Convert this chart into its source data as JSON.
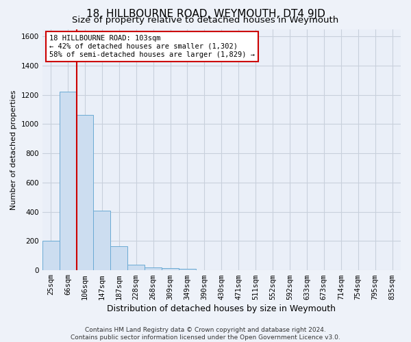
{
  "title": "18, HILLBOURNE ROAD, WEYMOUTH, DT4 9JD",
  "subtitle": "Size of property relative to detached houses in Weymouth",
  "xlabel": "Distribution of detached houses by size in Weymouth",
  "ylabel": "Number of detached properties",
  "categories": [
    "25sqm",
    "66sqm",
    "106sqm",
    "147sqm",
    "187sqm",
    "228sqm",
    "268sqm",
    "309sqm",
    "349sqm",
    "390sqm",
    "430sqm",
    "471sqm",
    "511sqm",
    "552sqm",
    "592sqm",
    "633sqm",
    "673sqm",
    "714sqm",
    "754sqm",
    "795sqm",
    "835sqm"
  ],
  "values": [
    200,
    1220,
    1065,
    410,
    165,
    40,
    20,
    15,
    10,
    0,
    0,
    0,
    0,
    0,
    0,
    0,
    0,
    0,
    0,
    0,
    0
  ],
  "bar_color": "#ccddf0",
  "bar_edge_color": "#6aaad4",
  "highlight_color": "#cc0000",
  "annotation_line1": "18 HILLBOURNE ROAD: 103sqm",
  "annotation_line2": "← 42% of detached houses are smaller (1,302)",
  "annotation_line3": "58% of semi-detached houses are larger (1,829) →",
  "ylim": [
    0,
    1650
  ],
  "yticks": [
    0,
    200,
    400,
    600,
    800,
    1000,
    1200,
    1400,
    1600
  ],
  "footer_line1": "Contains HM Land Registry data © Crown copyright and database right 2024.",
  "footer_line2": "Contains public sector information licensed under the Open Government Licence v3.0.",
  "bg_color": "#eef2f9",
  "plot_bg_color": "#eaeff8",
  "grid_color": "#c8d0dc",
  "title_fontsize": 11,
  "subtitle_fontsize": 9.5,
  "xlabel_fontsize": 9,
  "ylabel_fontsize": 8,
  "tick_fontsize": 7.5,
  "annotation_fontsize": 7.5,
  "footer_fontsize": 6.5
}
